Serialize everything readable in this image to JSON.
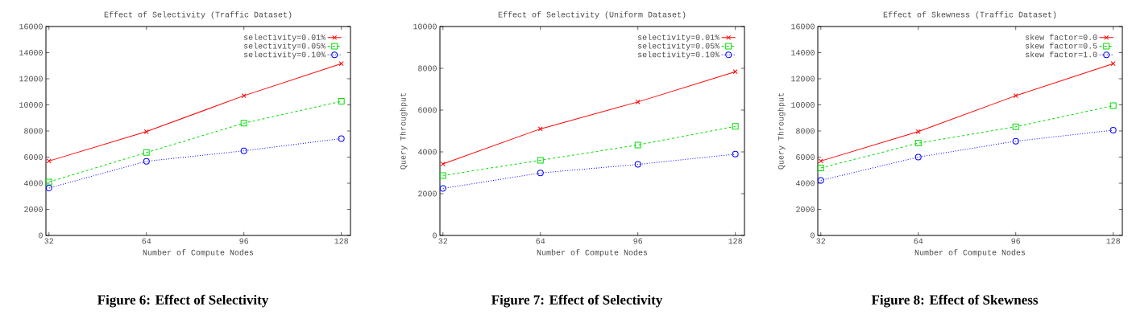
{
  "chart_data": [
    {
      "type": "line",
      "title": "Effect of Selectivity (Traffic Dataset)",
      "xlabel": "Number of Compute Nodes",
      "x": [
        32,
        64,
        96,
        128
      ],
      "xlim": [
        31,
        131
      ],
      "xticks": [
        32,
        64,
        96,
        128
      ],
      "ylim": [
        0,
        16000
      ],
      "yticks": [
        0,
        2000,
        4000,
        6000,
        8000,
        10000,
        12000,
        14000,
        16000
      ],
      "legend": "top right",
      "annotations": [
        "Figure 6: Effect of Selectivity"
      ],
      "series": [
        {
          "name": "selectivity=0.01%",
          "color": "#ff0000",
          "marker": "cross",
          "line_style": "solid",
          "values": [
            5700,
            7950,
            10700,
            13160
          ]
        },
        {
          "name": "selectivity=0.05%",
          "color": "#00dd00",
          "marker": "square",
          "line_style": "dashed",
          "values": [
            4100,
            6350,
            8600,
            10270
          ]
        },
        {
          "name": "selectivity=0.10%",
          "color": "#0000ff",
          "marker": "circle",
          "line_style": "dotted",
          "values": [
            3630,
            5680,
            6480,
            7420
          ]
        }
      ]
    },
    {
      "type": "line",
      "title": "Effect of Selectivity (Uniform Dataset)",
      "xlabel": "Number of Compute Nodes",
      "ylabel": "Query Throughput",
      "x": [
        32,
        64,
        96,
        128
      ],
      "xlim": [
        31,
        131
      ],
      "xticks": [
        32,
        64,
        96,
        128
      ],
      "ylim": [
        0,
        10000
      ],
      "yticks": [
        0,
        2000,
        4000,
        6000,
        8000,
        10000
      ],
      "legend": "top right",
      "annotations": [
        "Figure 7: Effect of Selectivity"
      ],
      "series": [
        {
          "name": "selectivity=0.01%",
          "color": "#ff0000",
          "marker": "cross",
          "line_style": "solid",
          "values": [
            3420,
            5100,
            6390,
            7840
          ]
        },
        {
          "name": "selectivity=0.05%",
          "color": "#00dd00",
          "marker": "square",
          "line_style": "dashed",
          "values": [
            2870,
            3600,
            4330,
            5220
          ]
        },
        {
          "name": "selectivity=0.10%",
          "color": "#0000ff",
          "marker": "circle",
          "line_style": "dotted",
          "values": [
            2250,
            2990,
            3400,
            3890
          ]
        }
      ]
    },
    {
      "type": "line",
      "title": "Effect of Skewness (Traffic Dataset)",
      "xlabel": "Number of Compute Nodes",
      "ylabel": "Query Throughput",
      "x": [
        32,
        64,
        96,
        128
      ],
      "xlim": [
        31,
        131
      ],
      "xticks": [
        32,
        64,
        96,
        128
      ],
      "ylim": [
        0,
        16000
      ],
      "yticks": [
        0,
        2000,
        4000,
        6000,
        8000,
        10000,
        12000,
        14000,
        16000
      ],
      "legend": "top right",
      "annotations": [
        "Figure 8: Effect of Skewness"
      ],
      "series": [
        {
          "name": "skew factor=0.0",
          "color": "#ff0000",
          "marker": "cross",
          "line_style": "solid",
          "values": [
            5700,
            7950,
            10700,
            13160
          ]
        },
        {
          "name": "skew factor=0.5",
          "color": "#00dd00",
          "marker": "square",
          "line_style": "dashed",
          "values": [
            5170,
            7070,
            8320,
            9940
          ]
        },
        {
          "name": "skew factor=1.0",
          "color": "#0000ff",
          "marker": "circle",
          "line_style": "dotted",
          "values": [
            4220,
            6000,
            7220,
            8060
          ]
        }
      ]
    }
  ]
}
